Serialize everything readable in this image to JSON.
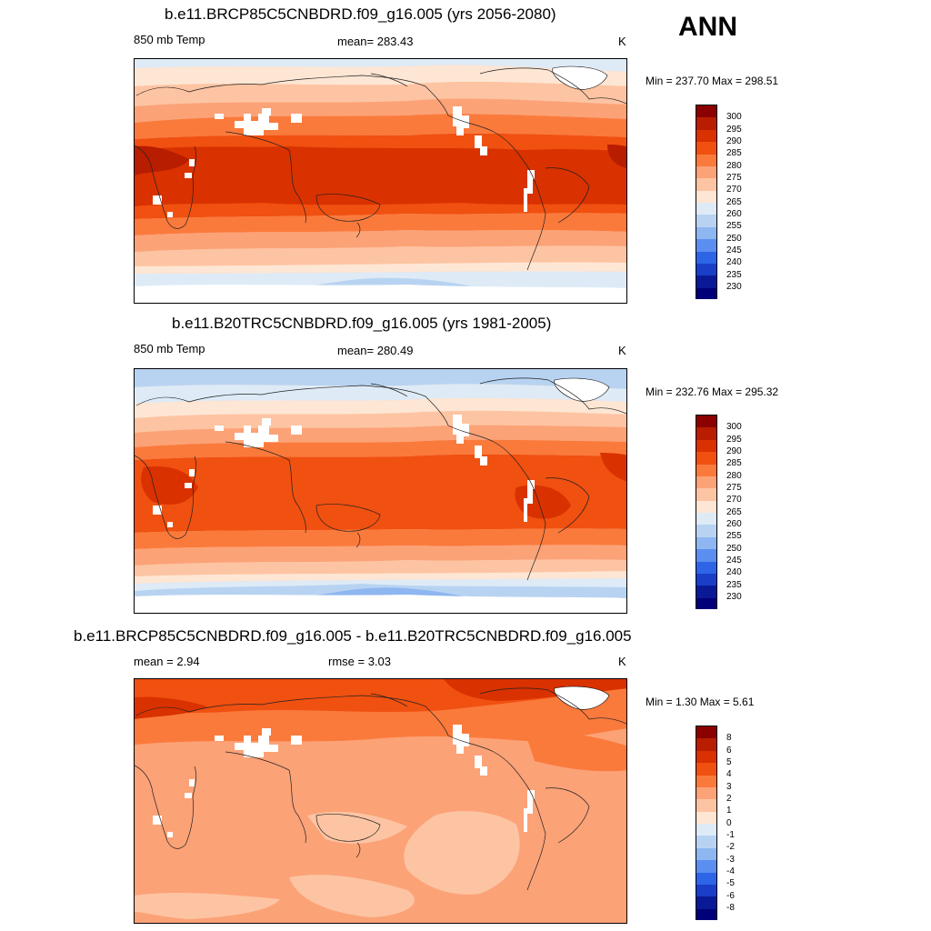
{
  "header": {
    "season": "ANN"
  },
  "panels": [
    {
      "title": "b.e11.BRCP85C5CNBDRD.f09_g16.005 (yrs 2056-2080)",
      "left_label": "850 mb Temp",
      "center_label": "mean= 283.43",
      "units": "K",
      "minmax": "Min = 237.70 Max = 298.51",
      "colorbar_labels": [
        "300",
        "295",
        "290",
        "285",
        "280",
        "275",
        "270",
        "265",
        "260",
        "255",
        "250",
        "245",
        "240",
        "235",
        "230"
      ]
    },
    {
      "title": "b.e11.B20TRC5CNBDRD.f09_g16.005 (yrs 1981-2005)",
      "left_label": "850 mb Temp",
      "center_label": "mean= 280.49",
      "units": "K",
      "minmax": "Min = 232.76 Max = 295.32",
      "colorbar_labels": [
        "300",
        "295",
        "290",
        "285",
        "280",
        "275",
        "270",
        "265",
        "260",
        "255",
        "250",
        "245",
        "240",
        "235",
        "230"
      ]
    },
    {
      "title": "b.e11.BRCP85C5CNBDRD.f09_g16.005 - b.e11.B20TRC5CNBDRD.f09_g16.005",
      "left_label": "mean =   2.94",
      "center_label": "rmse =   3.03",
      "units": "K",
      "minmax": "Min =   1.30 Max =   5.61",
      "colorbar_labels": [
        "8",
        "6",
        "5",
        "4",
        "3",
        "2",
        "1",
        "0",
        "-1",
        "-2",
        "-3",
        "-4",
        "-5",
        "-6",
        "-8"
      ]
    }
  ],
  "colors": {
    "abs_scale": [
      "#8b0000",
      "#b81d00",
      "#d93100",
      "#f05010",
      "#fa7a3c",
      "#fca277",
      "#fdc4a3",
      "#fee6d4",
      "#deebf7",
      "#b8d3f2",
      "#8eb6f0",
      "#5b8ef0",
      "#2e64e6",
      "#1a3ec8",
      "#0a1a96",
      "#000078"
    ],
    "diff_scale": [
      "#8b0000",
      "#b81d00",
      "#d93100",
      "#f05010",
      "#fa7a3c",
      "#fca277",
      "#fdc4a3",
      "#fee6d4",
      "#deebf7",
      "#b8d3f2",
      "#8eb6f0",
      "#5b8ef0",
      "#2e64e6",
      "#1a3ec8",
      "#0a1a96",
      "#000078"
    ]
  }
}
